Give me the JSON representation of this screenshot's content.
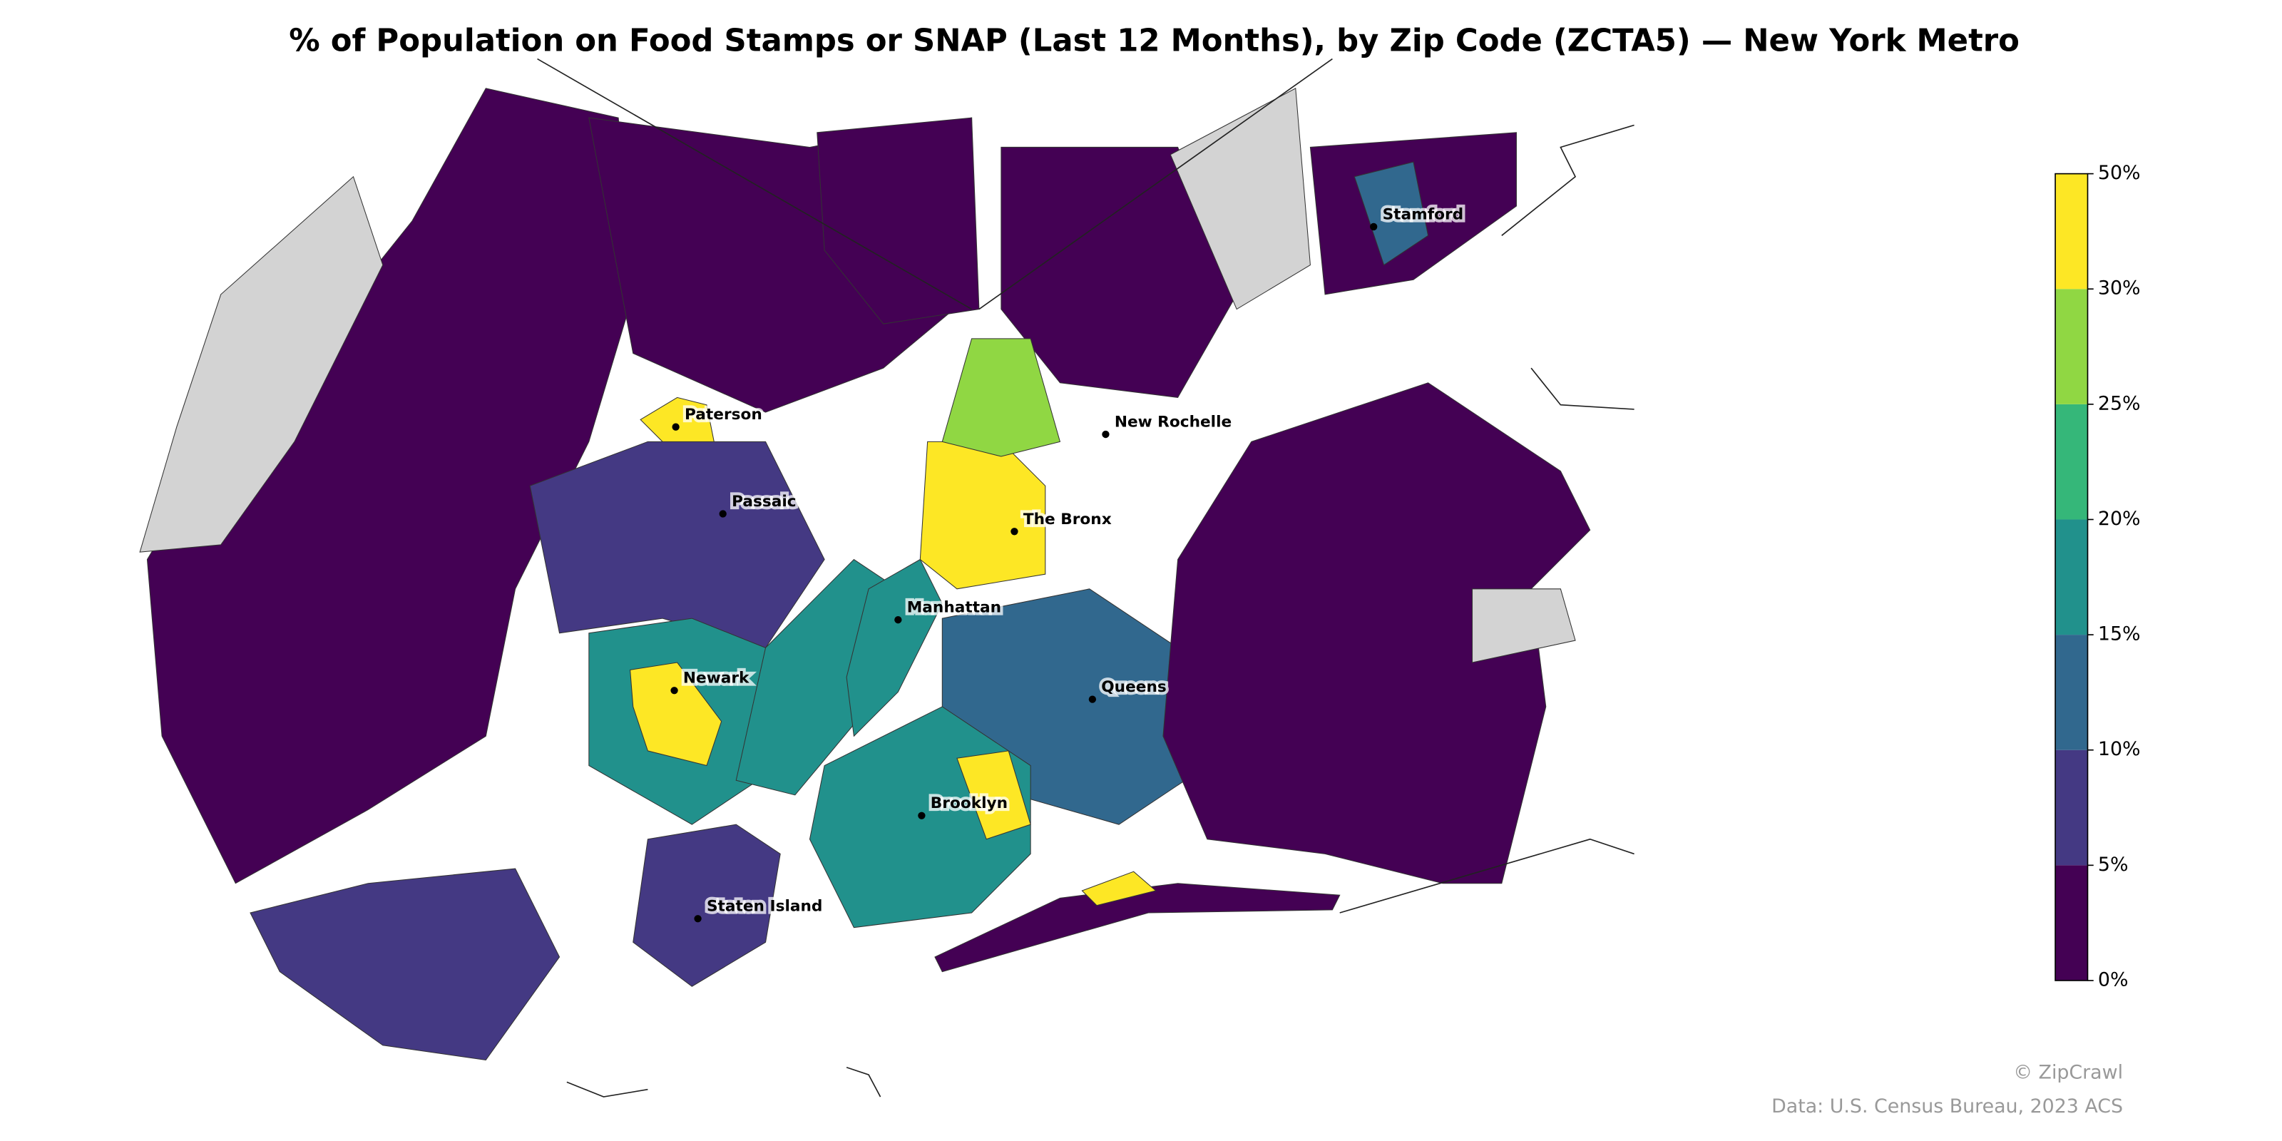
{
  "chart_data": {
    "type": "choropleth",
    "title": "% of Population on Food Stamps or SNAP (Last 12 Months), by Zip Code (ZCTA5) — New York Metro",
    "colorbar_ticks": [
      {
        "value": 0,
        "label": "0%"
      },
      {
        "value": 5,
        "label": "5%"
      },
      {
        "value": 10,
        "label": "10%"
      },
      {
        "value": 15,
        "label": "15%"
      },
      {
        "value": 20,
        "label": "20%"
      },
      {
        "value": 25,
        "label": "25%"
      },
      {
        "value": 30,
        "label": "30%"
      },
      {
        "value": 50,
        "label": "50%"
      }
    ],
    "colors": [
      "#440154",
      "#443983",
      "#31688e",
      "#21918c",
      "#35b779",
      "#90d743",
      "#fde725"
    ],
    "no_data_color": "#d3d3d3",
    "region_values": [
      2,
      null,
      7,
      2,
      40,
      40,
      7,
      15,
      40,
      17,
      7,
      2,
      3,
      null,
      3,
      12,
      40,
      26,
      17,
      12,
      17,
      40,
      2,
      null,
      3,
      40
    ],
    "cities": [
      "Paterson",
      "Passaic",
      "The Bronx",
      "New Rochelle",
      "Stamford",
      "Manhattan",
      "Newark",
      "Queens",
      "Brooklyn",
      "Staten Island"
    ],
    "credit": "© ZipCrawl",
    "source": "Data: U.S. Census Bureau, 2023 ACS"
  }
}
